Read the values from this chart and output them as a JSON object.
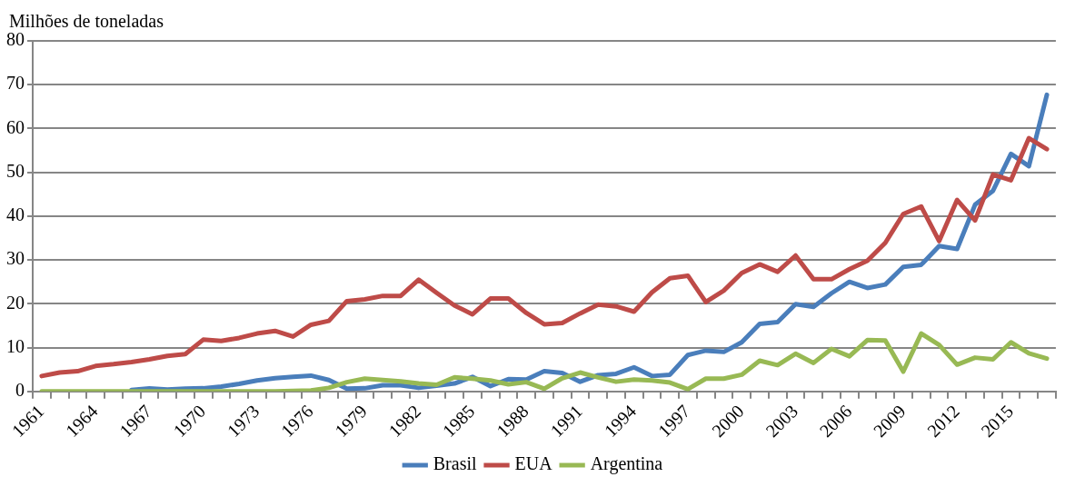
{
  "chart_data": {
    "type": "line",
    "ylabel": "Milhões de toneladas",
    "categories": [
      "1961",
      null,
      null,
      "1964",
      null,
      null,
      "1967",
      null,
      null,
      "1970",
      null,
      null,
      "1973",
      null,
      null,
      "1976",
      null,
      null,
      "1979",
      null,
      null,
      "1982",
      null,
      null,
      "1985",
      null,
      null,
      "1988",
      null,
      null,
      "1991",
      null,
      null,
      "1994",
      null,
      null,
      "1997",
      null,
      null,
      "2000",
      null,
      null,
      "2003",
      null,
      null,
      "2006",
      null,
      null,
      "2009",
      null,
      null,
      "2012",
      null,
      null,
      "2015",
      null,
      null
    ],
    "series": [
      {
        "name": "Brasil",
        "color": "#4a7ebb",
        "values": [
          null,
          null,
          null,
          null,
          null,
          0.3,
          0.7,
          0.4,
          0.6,
          0.7,
          1.1,
          1.7,
          2.5,
          3.0,
          3.3,
          3.6,
          2.6,
          0.6,
          0.7,
          1.4,
          1.4,
          0.8,
          1.3,
          1.8,
          3.3,
          1.2,
          2.8,
          2.7,
          4.6,
          4.2,
          2.2,
          3.7,
          4.0,
          5.5,
          3.5,
          3.8,
          8.3,
          9.3,
          9.0,
          11.2,
          15.4,
          15.8,
          19.9,
          19.3,
          22.4,
          25.0,
          23.6,
          24.4,
          28.4,
          28.9,
          33.2,
          32.5,
          42.6,
          45.8,
          54.2,
          51.4,
          67.7
        ]
      },
      {
        "name": "EUA",
        "color": "#be4b48",
        "values": [
          3.5,
          4.3,
          4.6,
          5.8,
          6.2,
          6.7,
          7.3,
          8.1,
          8.5,
          11.8,
          11.5,
          12.2,
          13.2,
          13.8,
          12.5,
          15.2,
          16.1,
          20.6,
          21.0,
          21.8,
          21.8,
          25.5,
          22.5,
          19.6,
          17.6,
          21.2,
          21.2,
          17.9,
          15.3,
          15.6,
          17.8,
          19.8,
          19.4,
          18.2,
          22.6,
          25.8,
          26.4,
          20.4,
          23.0,
          27.0,
          29.0,
          27.3,
          31.0,
          25.6,
          25.6,
          27.9,
          29.8,
          33.9,
          40.5,
          42.2,
          34.3,
          43.7,
          39.0,
          49.5,
          48.2,
          57.8,
          55.3
        ]
      },
      {
        "name": "Argentina",
        "color": "#98b954",
        "values": [
          0,
          0,
          0,
          0,
          0,
          0,
          0,
          0,
          0,
          0,
          0,
          0,
          0,
          0,
          0.1,
          0.2,
          0.8,
          2.1,
          2.9,
          2.6,
          2.3,
          1.8,
          1.5,
          3.2,
          2.9,
          2.5,
          1.6,
          2.1,
          0.6,
          3.0,
          4.3,
          3.2,
          2.2,
          2.7,
          2.5,
          2.0,
          0.5,
          2.9,
          2.9,
          3.8,
          7.0,
          6.0,
          8.6,
          6.5,
          9.7,
          8.0,
          11.7,
          11.6,
          4.5,
          13.2,
          10.6,
          6.1,
          7.7,
          7.3,
          11.2,
          8.7,
          7.5
        ]
      }
    ],
    "ylim": [
      0,
      80
    ],
    "yticks": [
      0,
      10,
      20,
      30,
      40,
      50,
      60,
      70,
      80
    ],
    "grid": "y",
    "legend": "bottom",
    "marker": "none",
    "line_style": "solid"
  }
}
